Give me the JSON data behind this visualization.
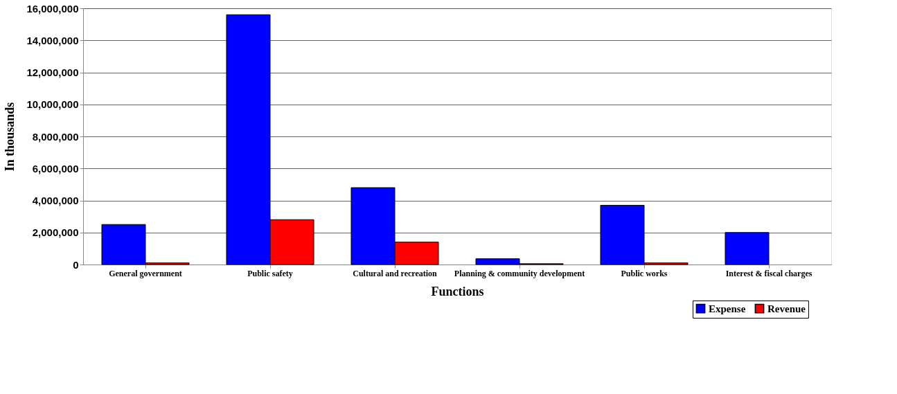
{
  "chart_data": {
    "type": "bar",
    "xlabel": "Functions",
    "ylabel": "In thousands",
    "categories": [
      "General government",
      "Public safety",
      "Cultural and recreation",
      "Planning & community development",
      "Public works",
      "Interest & fiscal charges"
    ],
    "series": [
      {
        "name": "Expense",
        "color": "#0000ff",
        "values": [
          2500000,
          15600000,
          4800000,
          360000,
          3700000,
          2000000
        ]
      },
      {
        "name": "Revenue",
        "color": "#ff0000",
        "values": [
          100000,
          2800000,
          1400000,
          50000,
          100000,
          null
        ]
      }
    ],
    "ylim": [
      0,
      16000000
    ],
    "yticks": [
      0,
      {
        "value": 2000000,
        "label": "2,000,000"
      },
      {
        "value": 4000000,
        "label": "4,000,000"
      },
      {
        "value": 6000000,
        "label": "6,000,000"
      },
      {
        "value": 8000000,
        "label": "8,000,000"
      },
      {
        "value": 10000000,
        "label": "10,000,000"
      },
      {
        "value": 12000000,
        "label": "12,000,000"
      },
      {
        "value": 14000000,
        "label": "14,000,000"
      },
      {
        "value": 16000000,
        "label": "16,000,000"
      }
    ],
    "grid": "y",
    "legend": "bottom right"
  }
}
